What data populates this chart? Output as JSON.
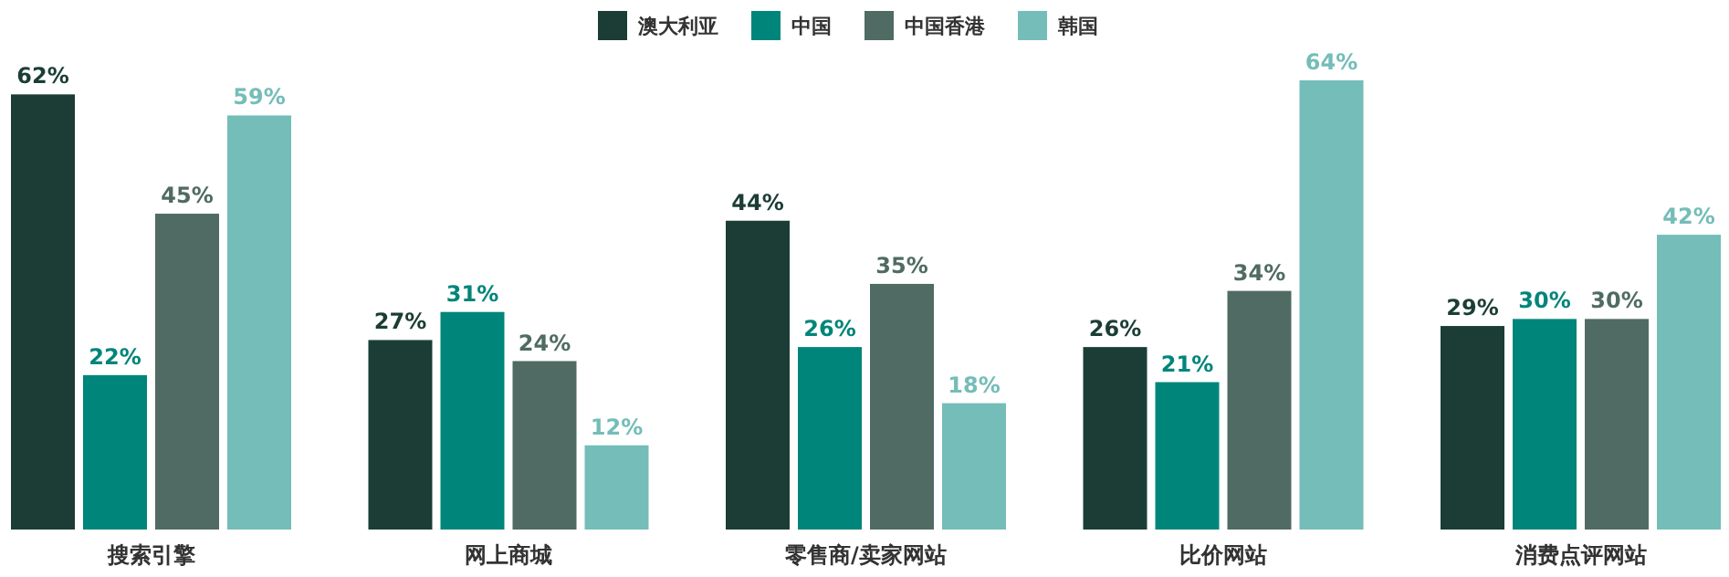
{
  "chart_data": {
    "type": "bar",
    "categories": [
      "搜索引擎",
      "网上商城",
      "零售商/卖家网站",
      "比价网站",
      "消费点评网站"
    ],
    "series": [
      {
        "name": "澳大利亚",
        "color": "#1b3d35",
        "values": [
          62,
          27,
          44,
          26,
          29
        ],
        "value_labels": [
          "62%",
          "27%",
          "44%",
          "26%",
          "29%"
        ]
      },
      {
        "name": "中国",
        "color": "#00857a",
        "values": [
          22,
          31,
          26,
          21,
          30
        ],
        "value_labels": [
          "22%",
          "31%",
          "26%",
          "21%",
          "30%"
        ]
      },
      {
        "name": "中国香港",
        "color": "#506b63",
        "values": [
          45,
          24,
          35,
          34,
          30
        ],
        "value_labels": [
          "45%",
          "24%",
          "35%",
          "34%",
          "30%"
        ]
      },
      {
        "name": "韩国",
        "color": "#74bdb8",
        "values": [
          59,
          12,
          18,
          64,
          42
        ],
        "value_labels": [
          "59%",
          "12%",
          "18%",
          "64%",
          "42%"
        ]
      }
    ],
    "legend": "top",
    "grid": false
  }
}
